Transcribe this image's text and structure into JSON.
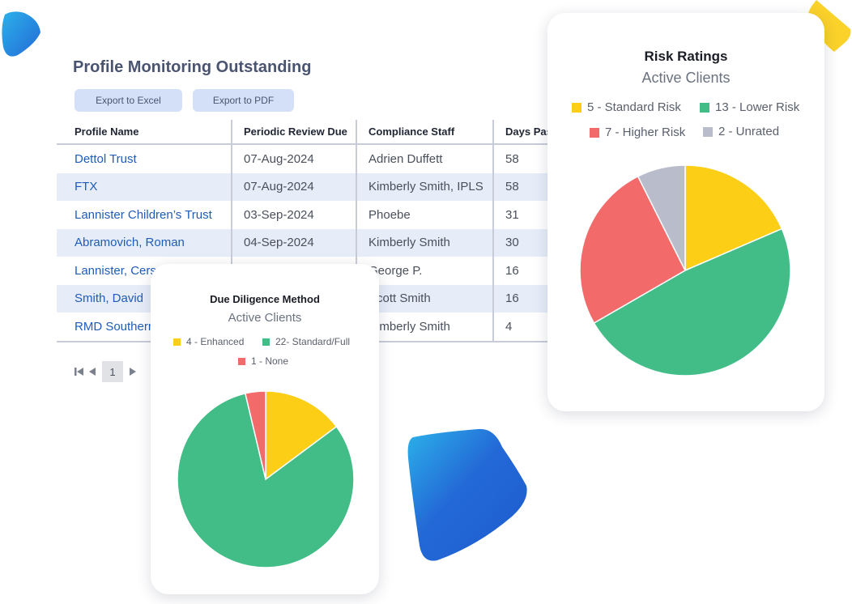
{
  "page": {
    "title": "Profile Monitoring Outstanding",
    "export_excel": "Export to Excel",
    "export_pdf": "Export to PDF"
  },
  "table": {
    "columns": [
      "Profile Name",
      "Periodic Review Due",
      "Compliance Staff",
      "Days Past"
    ],
    "rows": [
      [
        "Dettol Trust",
        "07-Aug-2024",
        "Adrien Duffett",
        "58"
      ],
      [
        "FTX",
        "07-Aug-2024",
        "Kimberly Smith, IPLS",
        "58"
      ],
      [
        "Lannister Children’s Trust",
        "03-Sep-2024",
        "Phoebe",
        "31"
      ],
      [
        "Abramovich, Roman",
        "04-Sep-2024",
        "Kimberly Smith",
        "30"
      ],
      [
        "Lannister, Cersei",
        "",
        "George P.",
        "16"
      ],
      [
        "Smith, David",
        "",
        "Scott Smith",
        "16"
      ],
      [
        "RMD Southern",
        "",
        "Kimberly Smith",
        "4"
      ]
    ]
  },
  "pagination": {
    "current_page": "1"
  },
  "colors": {
    "yellow": "#fccf16",
    "green": "#43bd88",
    "red": "#f26a6a",
    "gray": "#b8bccb",
    "link": "#1f5cb8",
    "blob_blue": "#2369d6",
    "blob_cyan": "#2cb1ea"
  },
  "risk_card": {
    "title": "Risk Ratings",
    "subtitle": "Active Clients",
    "legend": [
      {
        "label": "5 - Standard Risk",
        "color": "#fccf16"
      },
      {
        "label": "13 - Lower Risk",
        "color": "#43bd88"
      },
      {
        "label": "7 - Higher Risk",
        "color": "#f26a6a"
      },
      {
        "label": "2 - Unrated",
        "color": "#b8bccb"
      }
    ]
  },
  "dd_card": {
    "title": "Due Diligence Method",
    "subtitle": "Active Clients",
    "legend": [
      {
        "label": "4 - Enhanced",
        "color": "#fccf16"
      },
      {
        "label": "22- Standard/Full",
        "color": "#43bd88"
      },
      {
        "label": "1 - None",
        "color": "#f26a6a"
      }
    ]
  },
  "chart_data": [
    {
      "type": "pie",
      "title": "Risk Ratings",
      "subtitle": "Active Clients",
      "categories": [
        "Standard Risk",
        "Lower Risk",
        "Higher Risk",
        "Unrated"
      ],
      "values": [
        5,
        13,
        7,
        2
      ],
      "colors": [
        "#fccf16",
        "#43bd88",
        "#f26a6a",
        "#b8bccb"
      ],
      "legend": "top"
    },
    {
      "type": "pie",
      "title": "Due Diligence Method",
      "subtitle": "Active Clients",
      "categories": [
        "Enhanced",
        "Standard/Full",
        "None"
      ],
      "values": [
        4,
        22,
        1
      ],
      "colors": [
        "#fccf16",
        "#43bd88",
        "#f26a6a"
      ],
      "legend": "top"
    }
  ]
}
